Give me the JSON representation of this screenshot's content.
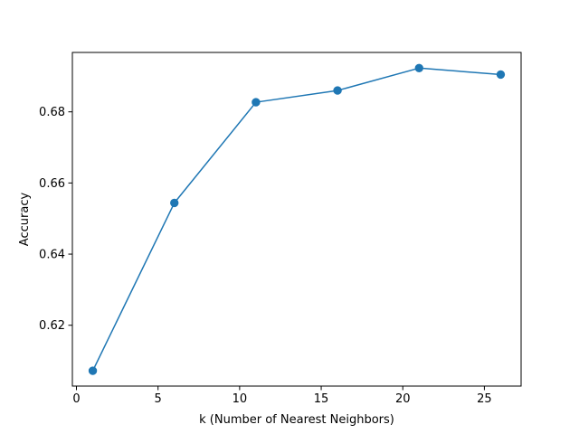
{
  "chart_data": {
    "type": "line",
    "title": "",
    "xlabel": "k (Number of Nearest Neighbors)",
    "ylabel": "Accuracy",
    "xlim": [
      -0.25,
      27.25
    ],
    "ylim": [
      0.6029,
      0.6967
    ],
    "xticks": [
      0,
      5,
      10,
      15,
      20,
      25
    ],
    "yticks": [
      0.62,
      0.64,
      0.66,
      0.68
    ],
    "xtick_labels": [
      "0",
      "5",
      "10",
      "15",
      "20",
      "25"
    ],
    "ytick_labels": [
      "0.62",
      "0.64",
      "0.66",
      "0.68"
    ],
    "grid": false,
    "series": [
      {
        "color": "#1f77b4",
        "marker": "circle",
        "x": [
          1,
          6,
          11,
          16,
          21,
          26
        ],
        "y": [
          0.6072,
          0.6544,
          0.6827,
          0.686,
          0.6923,
          0.6905
        ]
      }
    ]
  }
}
